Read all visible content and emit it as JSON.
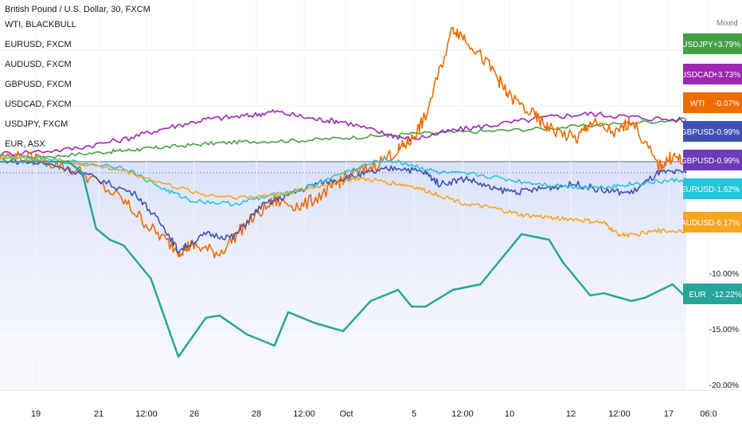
{
  "chart_data": {
    "type": "line",
    "title": "British Pound / U.S. Dollar, 30, FXCM",
    "scale_mode": "Mixed",
    "legend": [
      "WTI, BLACKBULL",
      "EURUSD, FXCM",
      "AUDUSD, FXCM",
      "GBPUSD, FXCM",
      "USDCAD, FXCM",
      "USDJPY, FXCM",
      "EUR, ASX"
    ],
    "x_ticks": [
      "19",
      "21",
      "12:00",
      "26",
      "28",
      "12:00",
      "Oct",
      "5",
      "12:00",
      "10",
      "12",
      "12:00",
      "17",
      "06:0"
    ],
    "y_ticks": [
      {
        "value": -10,
        "label": "-10.00%"
      },
      {
        "value": -15,
        "label": "-15.00%"
      },
      {
        "value": -20,
        "label": "-20.00%"
      }
    ],
    "ylim": [
      -20.5,
      14.5
    ],
    "series": [
      {
        "name": "USDJPY",
        "color": "#43a047",
        "end_label": "+3.79%",
        "x": [
          0,
          8,
          16,
          20,
          24,
          30,
          36,
          44,
          52,
          60,
          70,
          80,
          90,
          100
        ],
        "y": [
          0.4,
          0.5,
          0.9,
          1.1,
          1.3,
          1.6,
          1.8,
          1.9,
          2.2,
          2.5,
          2.7,
          3.0,
          3.4,
          3.8
        ]
      },
      {
        "name": "USDCAD",
        "color": "#9c27b0",
        "end_label": "+3.73%",
        "x": [
          0,
          10,
          18,
          24,
          30,
          36,
          40,
          46,
          50,
          56,
          60,
          66,
          72,
          80,
          86,
          92,
          100
        ],
        "y": [
          0.7,
          1.1,
          2.0,
          3.0,
          3.8,
          4.1,
          4.5,
          3.8,
          3.6,
          2.5,
          2.0,
          2.8,
          3.3,
          4.0,
          4.3,
          4.0,
          3.7
        ]
      },
      {
        "name": "WTI",
        "color": "#ef6c00",
        "end_label": "-0.07%",
        "x": [
          0,
          6,
          12,
          18,
          22,
          26,
          28,
          32,
          36,
          40,
          44,
          48,
          50,
          54,
          58,
          60,
          62,
          66,
          68,
          72,
          74,
          78,
          80,
          84,
          86,
          90,
          92,
          96,
          98,
          100
        ],
        "y": [
          0.5,
          0.2,
          -1.0,
          -3.5,
          -6.0,
          -8.0,
          -7.5,
          -8.2,
          -5.5,
          -3.5,
          -4.0,
          -2.5,
          -1.5,
          -0.5,
          1.0,
          2.0,
          4.0,
          12.0,
          11.0,
          8.0,
          6.0,
          4.0,
          3.0,
          2.0,
          3.5,
          2.5,
          3.8,
          -0.5,
          0.5,
          -0.1
        ]
      },
      {
        "name": "GBPUSD",
        "color": "#3f51b5",
        "end_label": "-0.99%",
        "x": [
          0,
          8,
          14,
          20,
          24,
          26,
          30,
          34,
          38,
          42,
          46,
          50,
          54,
          58,
          62,
          64,
          68,
          72,
          76,
          80,
          84,
          88,
          92,
          96,
          100
        ],
        "y": [
          0.2,
          -0.3,
          -1.5,
          -3.0,
          -6.0,
          -8.0,
          -6.5,
          -6.8,
          -4.0,
          -3.0,
          -2.0,
          -1.5,
          -1.0,
          -0.5,
          -1.0,
          -2.0,
          -1.5,
          -2.5,
          -2.7,
          -2.3,
          -2.0,
          -2.6,
          -2.8,
          -1.0,
          -1.0
        ]
      },
      {
        "name": "EURUSD",
        "color": "#26c6da",
        "end_label": "-1.62%",
        "x": [
          0,
          10,
          18,
          24,
          28,
          34,
          40,
          44,
          50,
          56,
          60,
          64,
          70,
          76,
          82,
          88,
          92,
          96,
          100
        ],
        "y": [
          0.5,
          0.0,
          -0.5,
          -2.5,
          -3.5,
          -3.8,
          -3.0,
          -2.5,
          -1.0,
          0.2,
          -0.3,
          -1.0,
          -1.2,
          -1.8,
          -2.2,
          -2.3,
          -2.0,
          -1.8,
          -1.6
        ]
      },
      {
        "name": "AUDUSD",
        "color": "#f5a623",
        "end_label": "-6.17%",
        "x": [
          0,
          10,
          18,
          24,
          30,
          36,
          42,
          48,
          52,
          56,
          60,
          64,
          68,
          72,
          76,
          80,
          84,
          88,
          90,
          92,
          96,
          100
        ],
        "y": [
          0.4,
          0.0,
          -0.8,
          -2.0,
          -3.0,
          -3.2,
          -2.8,
          -2.0,
          -1.5,
          -1.8,
          -2.2,
          -3.0,
          -3.8,
          -4.2,
          -4.8,
          -5.0,
          -5.2,
          -5.5,
          -6.5,
          -6.6,
          -6.2,
          -6.2
        ]
      },
      {
        "name": "EUR",
        "color": "#26a69a",
        "end_label": "-12.22%",
        "x": [
          0,
          10,
          12,
          14,
          16,
          18,
          22,
          26,
          30,
          32,
          36,
          40,
          42,
          46,
          50,
          54,
          58,
          60,
          62,
          66,
          70,
          74,
          76,
          80,
          82,
          86,
          88,
          92,
          94,
          98,
          100
        ],
        "y": [
          0,
          0,
          -1,
          -6,
          -7,
          -7.5,
          -10.5,
          -17.5,
          -14,
          -13.8,
          -15.5,
          -16.5,
          -13.5,
          -14.5,
          -15.2,
          -12.5,
          -11.5,
          -13.0,
          -13.0,
          -11.5,
          -11.0,
          -8.0,
          -6.5,
          -7.0,
          -9.0,
          -12.0,
          -11.8,
          -12.5,
          -12.2,
          -11.0,
          -12.2
        ]
      }
    ]
  }
}
